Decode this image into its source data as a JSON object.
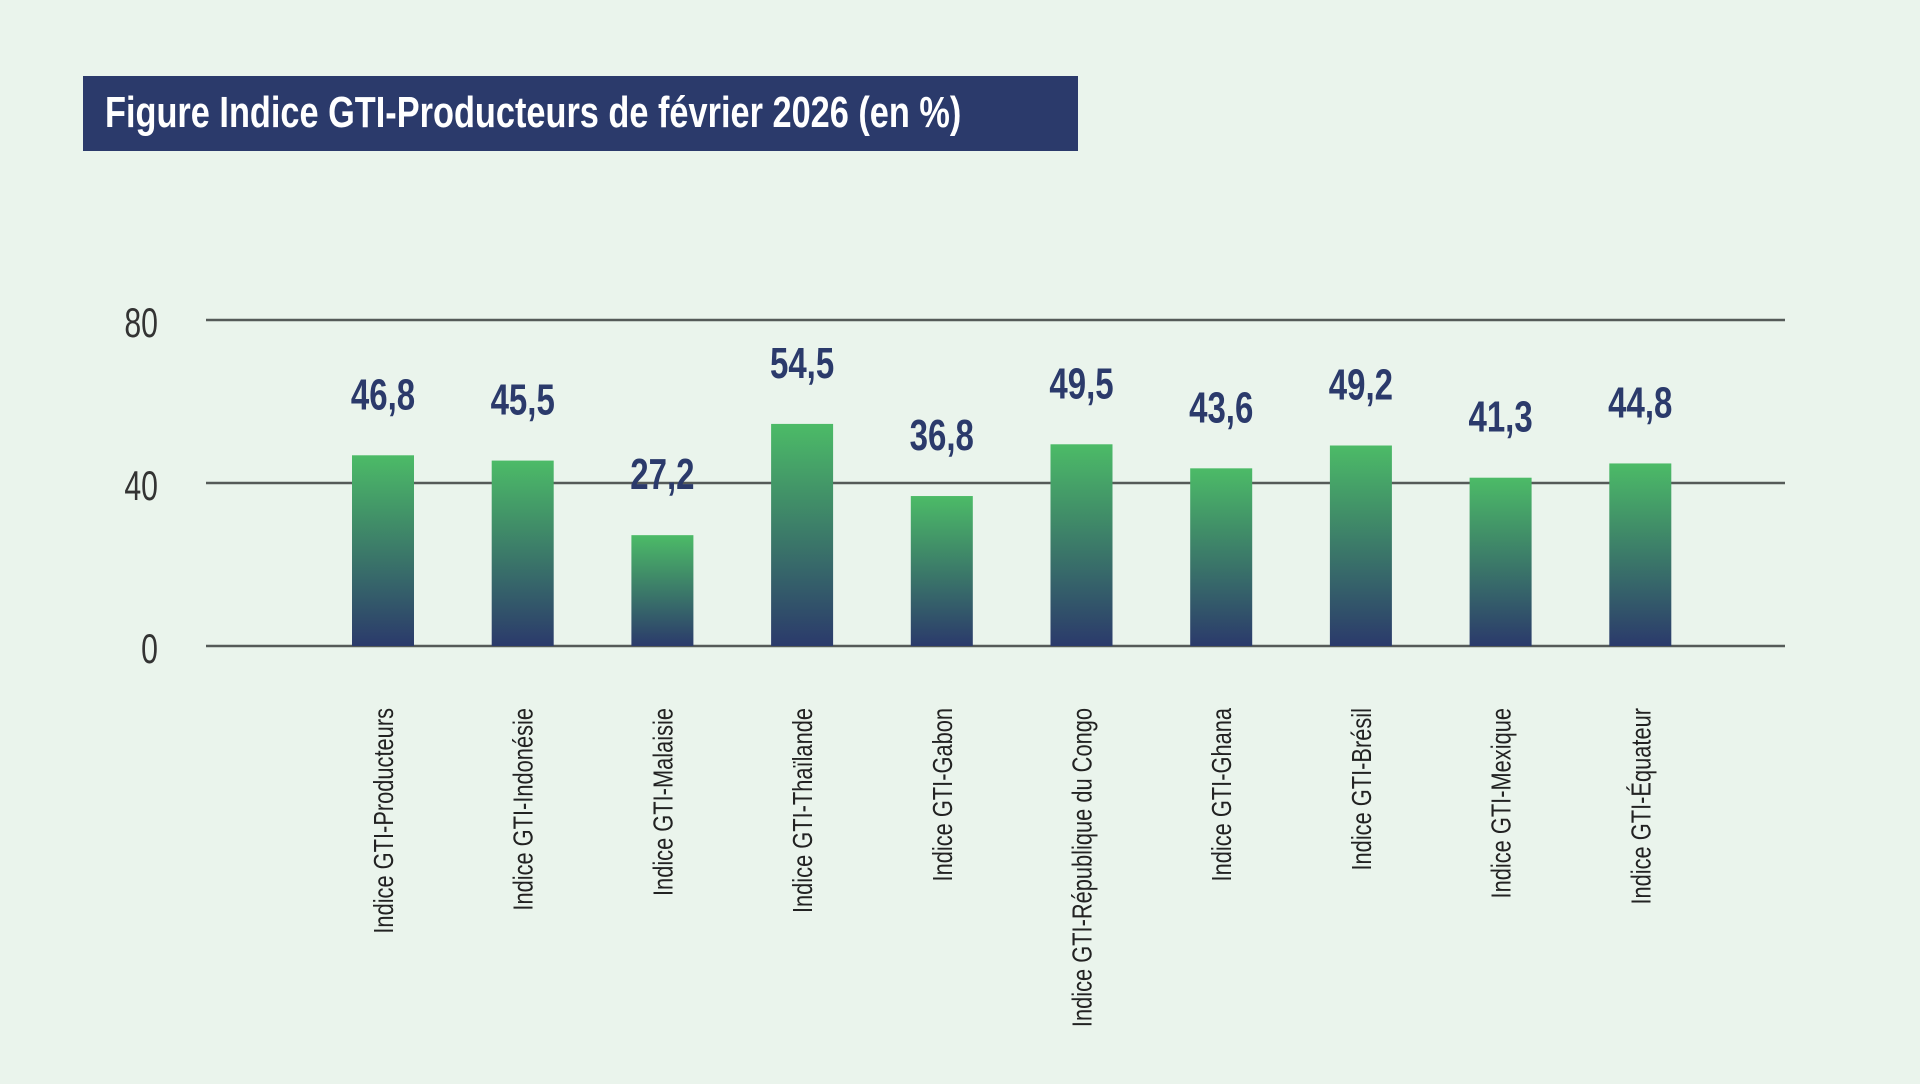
{
  "chart_data": {
    "type": "bar",
    "title": "Figure Indice GTI-Producteurs  de février 2026 (en %)",
    "categories": [
      "Indice GTI-Producteurs",
      "Indice GTI-Indonésie",
      "Indice GTI-Malaisie",
      "Indice GTI-Thaïlande",
      "Indice GTI-Gabon",
      "Indice GTI-République du Congo",
      "Indice GTI-Ghana",
      "Indice GTI-Brésil",
      "Indice GTI-Mexique",
      "Indice GTI-Équateur"
    ],
    "values": [
      46.8,
      45.5,
      27.2,
      54.5,
      36.8,
      49.5,
      43.6,
      49.2,
      41.3,
      44.8
    ],
    "data_labels": [
      "46,8",
      "45,5",
      "27,2",
      "54,5",
      "36,8",
      "49,5",
      "43,6",
      "49,2",
      "41,3",
      "44,8"
    ],
    "yticks": [
      "0",
      "40",
      "80"
    ],
    "ylim": [
      0,
      80
    ],
    "grid": true,
    "colors": {
      "bar_top": "#4cbb67",
      "bar_bottom": "#2b3a6b",
      "label": "#2b3a6b",
      "title_bg": "#2b3a6b",
      "background": "#eaf4ec",
      "gridline": "#555a58"
    }
  }
}
